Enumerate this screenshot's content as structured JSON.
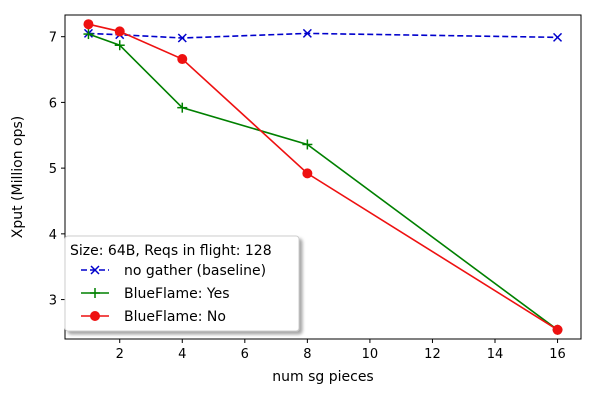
{
  "chart_data": {
    "type": "line",
    "title": "",
    "xlabel": "num sg pieces",
    "ylabel": "Xput (Million ops)",
    "xlim": [
      0.25,
      16.75
    ],
    "ylim": [
      2.4,
      7.33
    ],
    "xticks": [
      2,
      4,
      6,
      8,
      10,
      12,
      14,
      16
    ],
    "yticks": [
      3,
      4,
      5,
      6,
      7
    ],
    "grid": false,
    "legend": {
      "title": "Size: 64B, Reqs in flight: 128",
      "placement": "lower-left"
    },
    "series": [
      {
        "name": "no gather (baseline)",
        "color": "#0000cc",
        "linestyle": "dashed",
        "marker": "x",
        "x": [
          1,
          2,
          4,
          8,
          16
        ],
        "y": [
          7.05,
          7.03,
          6.98,
          7.05,
          6.99
        ]
      },
      {
        "name": "BlueFlame: Yes",
        "color": "#008000",
        "linestyle": "solid",
        "marker": "+",
        "x": [
          1,
          2,
          4,
          8,
          16
        ],
        "y": [
          7.04,
          6.87,
          5.92,
          5.36,
          2.54
        ]
      },
      {
        "name": "BlueFlame: No",
        "color": "#ee1111",
        "linestyle": "solid",
        "marker": "o",
        "x": [
          1,
          2,
          4,
          8,
          16
        ],
        "y": [
          7.19,
          7.08,
          6.66,
          4.92,
          2.54
        ]
      }
    ]
  }
}
